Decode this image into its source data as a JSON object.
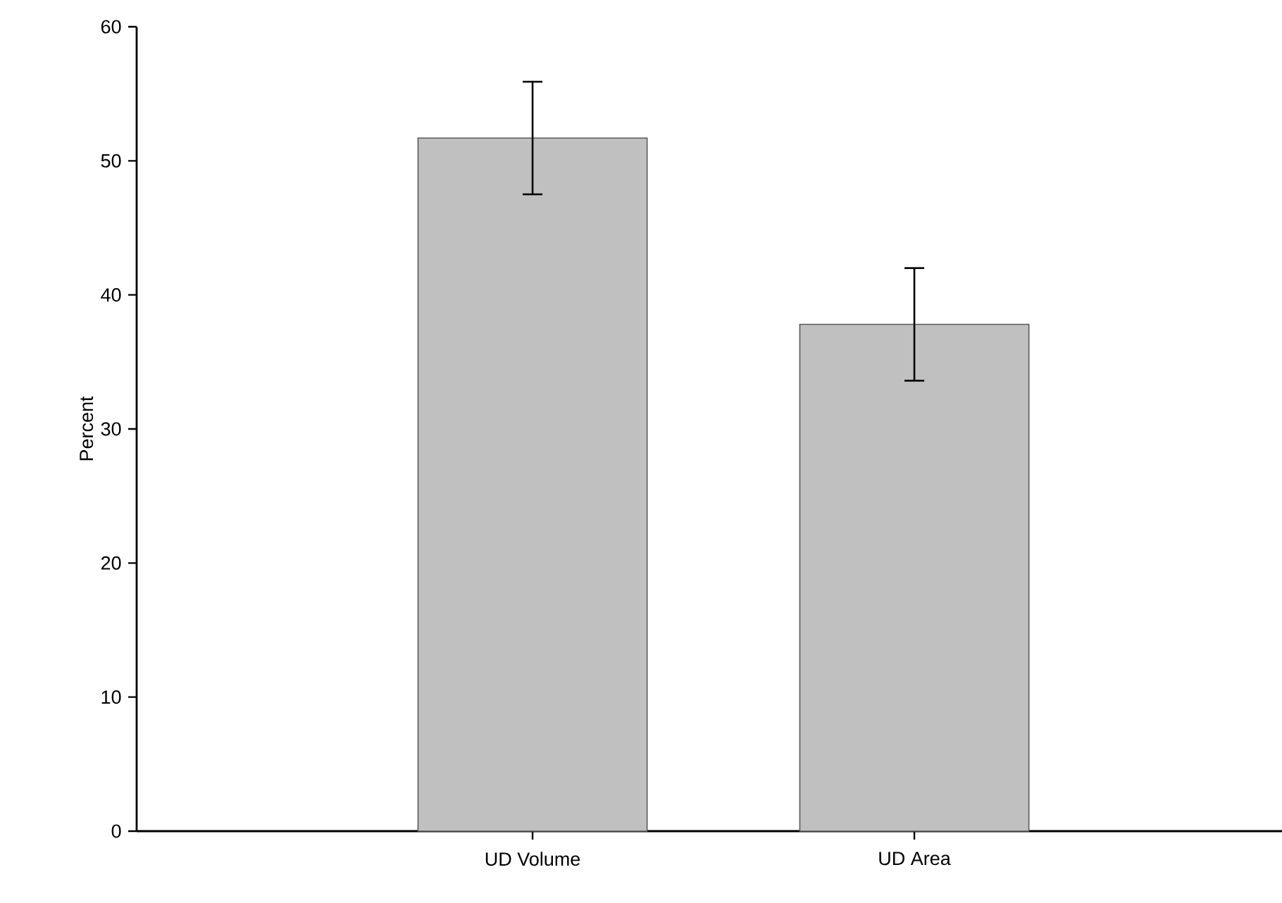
{
  "chart_data": {
    "type": "bar",
    "ylabel": "Percent",
    "categories": [
      "UD Volume",
      "UD Area"
    ],
    "values": [
      51.7,
      37.8
    ],
    "errors": [
      4.2,
      4.2
    ],
    "color": "#c0c0c0",
    "ylim": [
      0,
      60
    ],
    "yticks": [
      0,
      10,
      20,
      30,
      40,
      50,
      60
    ],
    "grid": false
  }
}
